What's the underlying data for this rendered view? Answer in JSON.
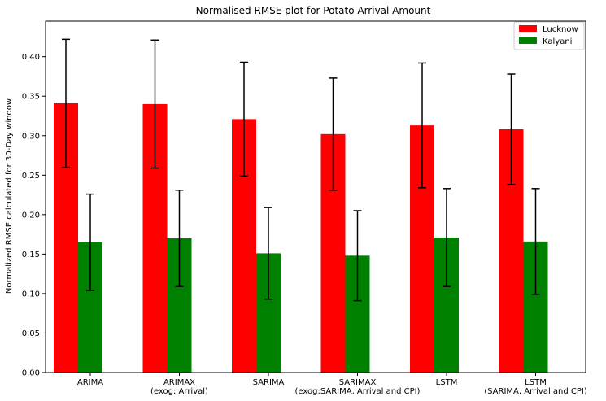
{
  "chart_data": {
    "type": "bar",
    "title": "Normalised RMSE plot for Potato Arrival Amount",
    "xlabel": "",
    "ylabel": "Normalized RMSE calculated for 30-Day window",
    "ylim": [
      0,
      0.445
    ],
    "yticks": [
      "0.00",
      "0.05",
      "0.10",
      "0.15",
      "0.20",
      "0.25",
      "0.30",
      "0.35",
      "0.40"
    ],
    "categories": [
      [
        "ARIMA"
      ],
      [
        "ARIMAX",
        "(exog: Arrival)"
      ],
      [
        "SARIMA"
      ],
      [
        "SARIMAX",
        "(exog:SARIMA, Arrival and CPI)"
      ],
      [
        "LSTM"
      ],
      [
        "LSTM",
        "(SARIMA, Arrival and CPI)"
      ]
    ],
    "series": [
      {
        "name": "Lucknow",
        "color": "#ff0000",
        "values": [
          0.341,
          0.34,
          0.321,
          0.302,
          0.313,
          0.308
        ],
        "errors": [
          0.081,
          0.081,
          0.072,
          0.071,
          0.079,
          0.07
        ]
      },
      {
        "name": "Kalyani",
        "color": "#008000",
        "values": [
          0.165,
          0.17,
          0.151,
          0.148,
          0.171,
          0.166
        ],
        "errors": [
          0.061,
          0.061,
          0.058,
          0.057,
          0.062,
          0.067
        ]
      }
    ],
    "legend": {
      "placement": "top-right"
    },
    "grid": false
  }
}
